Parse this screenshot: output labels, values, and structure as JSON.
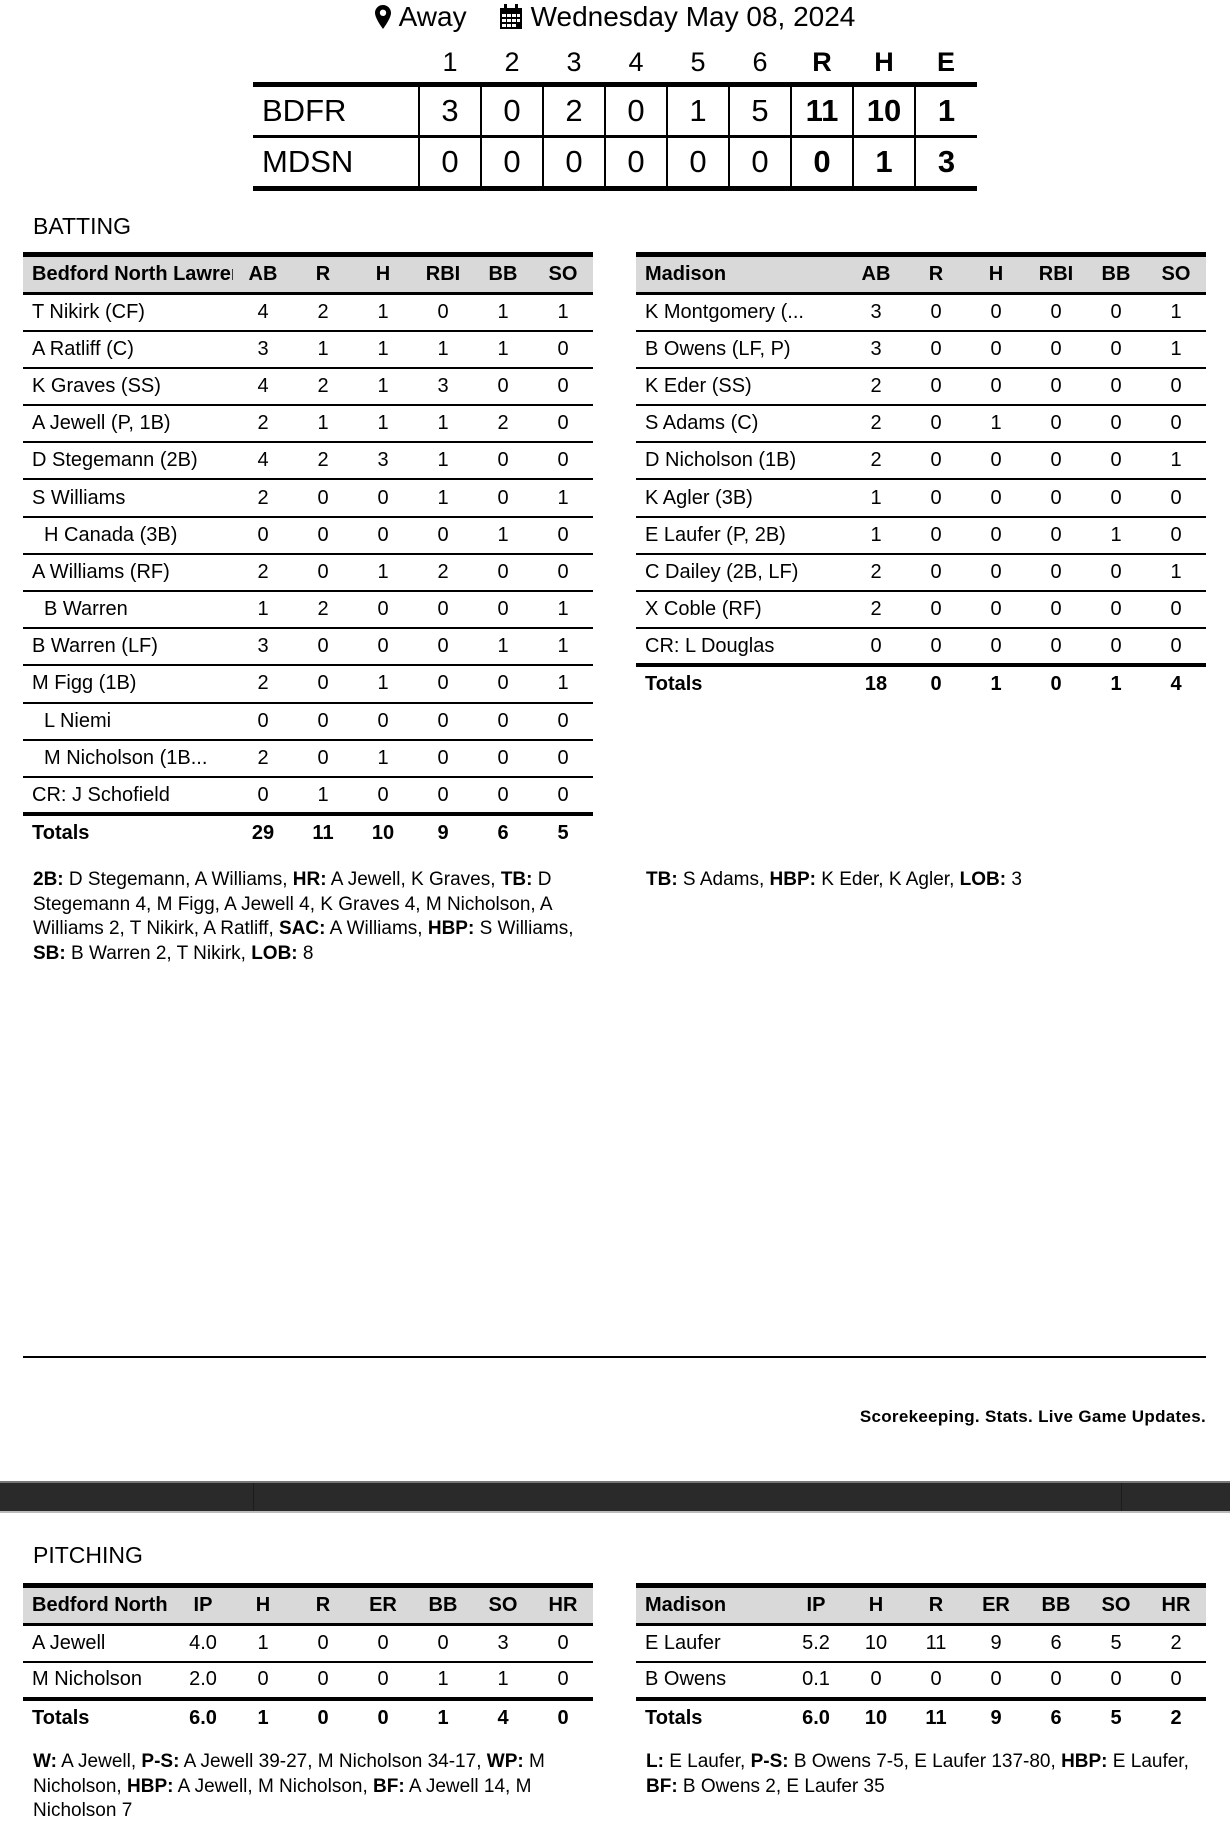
{
  "game": {
    "location": "Away",
    "date": "Wednesday May 08, 2024",
    "location_icon": "map-pin-icon",
    "date_icon": "calendar-icon"
  },
  "linescore": {
    "headers": [
      "1",
      "2",
      "3",
      "4",
      "5",
      "6",
      "R",
      "H",
      "E"
    ],
    "teams": [
      {
        "abbr": "BDFR",
        "innings": [
          "3",
          "0",
          "2",
          "0",
          "1",
          "5"
        ],
        "R": "11",
        "H": "10",
        "E": "1"
      },
      {
        "abbr": "MDSN",
        "innings": [
          "0",
          "0",
          "0",
          "0",
          "0",
          "0"
        ],
        "R": "0",
        "H": "1",
        "E": "3"
      }
    ]
  },
  "batting": {
    "title": "BATTING",
    "tables": [
      {
        "team": "Bedford North Lawrence",
        "columns": [
          "AB",
          "R",
          "H",
          "RBI",
          "BB",
          "SO"
        ],
        "rows": [
          {
            "name": "T Nikirk (CF)",
            "stats": [
              "4",
              "2",
              "1",
              "0",
              "1",
              "1"
            ]
          },
          {
            "name": "A Ratliff (C)",
            "stats": [
              "3",
              "1",
              "1",
              "1",
              "1",
              "0"
            ]
          },
          {
            "name": "K Graves (SS)",
            "stats": [
              "4",
              "2",
              "1",
              "3",
              "0",
              "0"
            ]
          },
          {
            "name": "A Jewell (P, 1B)",
            "stats": [
              "2",
              "1",
              "1",
              "1",
              "2",
              "0"
            ]
          },
          {
            "name": "D Stegemann (2B)",
            "stats": [
              "4",
              "2",
              "3",
              "1",
              "0",
              "0"
            ]
          },
          {
            "name": "S Williams",
            "stats": [
              "2",
              "0",
              "0",
              "1",
              "0",
              "1"
            ]
          },
          {
            "name": "H Canada (3B)",
            "sub": true,
            "stats": [
              "0",
              "0",
              "0",
              "0",
              "1",
              "0"
            ]
          },
          {
            "name": "A Williams (RF)",
            "stats": [
              "2",
              "0",
              "1",
              "2",
              "0",
              "0"
            ]
          },
          {
            "name": "B Warren",
            "sub": true,
            "stats": [
              "1",
              "2",
              "0",
              "0",
              "0",
              "1"
            ]
          },
          {
            "name": "B Warren (LF)",
            "stats": [
              "3",
              "0",
              "0",
              "0",
              "1",
              "1"
            ]
          },
          {
            "name": "M Figg (1B)",
            "stats": [
              "2",
              "0",
              "1",
              "0",
              "0",
              "1"
            ]
          },
          {
            "name": "L Niemi",
            "sub": true,
            "stats": [
              "0",
              "0",
              "0",
              "0",
              "0",
              "0"
            ]
          },
          {
            "name": "M Nicholson (1B...",
            "sub": true,
            "stats": [
              "2",
              "0",
              "1",
              "0",
              "0",
              "0"
            ]
          },
          {
            "name": "CR: J Schofield",
            "stats": [
              "0",
              "1",
              "0",
              "0",
              "0",
              "0"
            ]
          }
        ],
        "totals": {
          "label": "Totals",
          "stats": [
            "29",
            "11",
            "10",
            "9",
            "6",
            "5"
          ]
        },
        "notes": [
          {
            "k": "2B:",
            "v": " D Stegemann, A Williams, "
          },
          {
            "k": "HR:",
            "v": " A Jewell, K Graves, "
          },
          {
            "k": "TB:",
            "v": " D Stegemann 4, M Figg, A Jewell 4, K Graves 4, M Nicholson, A Williams 2, T Nikirk, A Ratliff, "
          },
          {
            "k": "SAC:",
            "v": " A Williams, "
          },
          {
            "k": "HBP:",
            "v": " S Williams, "
          },
          {
            "k": "SB:",
            "v": " B Warren 2, T Nikirk, "
          },
          {
            "k": "LOB:",
            "v": " 8"
          }
        ]
      },
      {
        "team": "Madison",
        "columns": [
          "AB",
          "R",
          "H",
          "RBI",
          "BB",
          "SO"
        ],
        "rows": [
          {
            "name": "K Montgomery  (...",
            "stats": [
              "3",
              "0",
              "0",
              "0",
              "0",
              "1"
            ]
          },
          {
            "name": "B Owens (LF, P)",
            "stats": [
              "3",
              "0",
              "0",
              "0",
              "0",
              "1"
            ]
          },
          {
            "name": "K Eder (SS)",
            "stats": [
              "2",
              "0",
              "0",
              "0",
              "0",
              "0"
            ]
          },
          {
            "name": "S Adams (C)",
            "stats": [
              "2",
              "0",
              "1",
              "0",
              "0",
              "0"
            ]
          },
          {
            "name": "D Nicholson (1B)",
            "stats": [
              "2",
              "0",
              "0",
              "0",
              "0",
              "1"
            ]
          },
          {
            "name": "K Agler (3B)",
            "stats": [
              "1",
              "0",
              "0",
              "0",
              "0",
              "0"
            ]
          },
          {
            "name": "E Laufer (P, 2B)",
            "stats": [
              "1",
              "0",
              "0",
              "0",
              "1",
              "0"
            ]
          },
          {
            "name": "C Dailey (2B, LF)",
            "stats": [
              "2",
              "0",
              "0",
              "0",
              "0",
              "1"
            ]
          },
          {
            "name": "X Coble (RF)",
            "stats": [
              "2",
              "0",
              "0",
              "0",
              "0",
              "0"
            ]
          },
          {
            "name": "CR: L Douglas",
            "stats": [
              "0",
              "0",
              "0",
              "0",
              "0",
              "0"
            ]
          }
        ],
        "totals": {
          "label": "Totals",
          "stats": [
            "18",
            "0",
            "1",
            "0",
            "1",
            "4"
          ]
        },
        "notes": [
          {
            "k": "TB:",
            "v": " S Adams, "
          },
          {
            "k": "HBP:",
            "v": " K Eder, K Agler, "
          },
          {
            "k": "LOB:",
            "v": " 3"
          }
        ]
      }
    ]
  },
  "footer": {
    "tagline": "Scorekeeping. Stats. Live Game Updates."
  },
  "pitching": {
    "title": "PITCHING",
    "tables": [
      {
        "team": "Bedford North Lawrence",
        "columns": [
          "IP",
          "H",
          "R",
          "ER",
          "BB",
          "SO",
          "HR"
        ],
        "rows": [
          {
            "name": "A Jewell",
            "stats": [
              "4.0",
              "1",
              "0",
              "0",
              "0",
              "3",
              "0"
            ]
          },
          {
            "name": "M Nicholson",
            "stats": [
              "2.0",
              "0",
              "0",
              "0",
              "1",
              "1",
              "0"
            ]
          }
        ],
        "totals": {
          "label": "Totals",
          "stats": [
            "6.0",
            "1",
            "0",
            "0",
            "1",
            "4",
            "0"
          ]
        },
        "notes": [
          {
            "k": "W:",
            "v": " A Jewell, "
          },
          {
            "k": "P-S:",
            "v": " A Jewell 39-27, M Nicholson 34-17, "
          },
          {
            "k": "WP:",
            "v": " M Nicholson, "
          },
          {
            "k": "HBP:",
            "v": " A Jewell, M Nicholson, "
          },
          {
            "k": "BF:",
            "v": " A Jewell 14, M Nicholson 7"
          }
        ]
      },
      {
        "team": "Madison",
        "columns": [
          "IP",
          "H",
          "R",
          "ER",
          "BB",
          "SO",
          "HR"
        ],
        "rows": [
          {
            "name": "E Laufer",
            "stats": [
              "5.2",
              "10",
              "11",
              "9",
              "6",
              "5",
              "2"
            ]
          },
          {
            "name": "B Owens",
            "stats": [
              "0.1",
              "0",
              "0",
              "0",
              "0",
              "0",
              "0"
            ]
          }
        ],
        "totals": {
          "label": "Totals",
          "stats": [
            "6.0",
            "10",
            "11",
            "9",
            "6",
            "5",
            "2"
          ]
        },
        "notes": [
          {
            "k": "L:",
            "v": " E Laufer, "
          },
          {
            "k": "P-S:",
            "v": " B Owens 7-5, E Laufer 137-80, "
          },
          {
            "k": "HBP:",
            "v": " E Laufer, "
          },
          {
            "k": "BF:",
            "v": " B Owens 2, E Laufer 35"
          }
        ]
      }
    ]
  }
}
